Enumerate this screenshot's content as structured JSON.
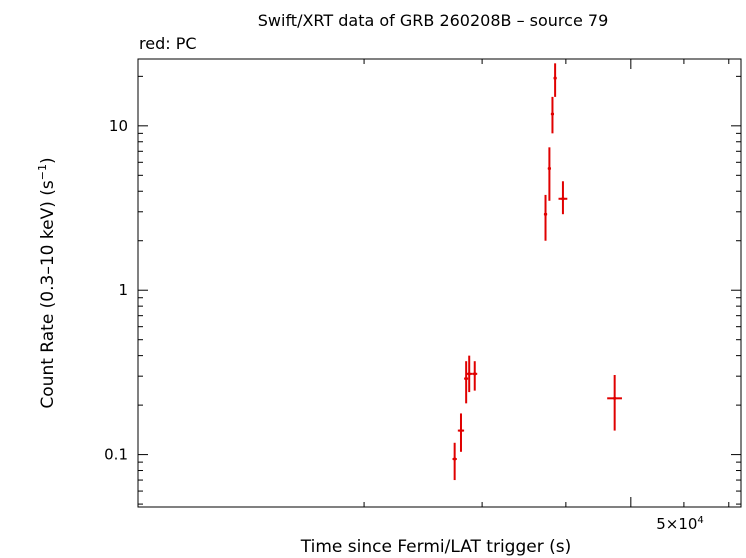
{
  "chart_data": {
    "type": "scatter",
    "title": "Swift/XRT data of GRB 260208B – source 79",
    "subtitle": "red: PC",
    "xlabel": "Time since Fermi/LAT trigger (s)",
    "ylabel_main": "Count Rate (0.3–10 keV) (s",
    "ylabel_exp": "−1",
    "ylabel_close": ")",
    "x_scale": "log",
    "y_scale": "log",
    "xlim": [
      9200,
      73000
    ],
    "ylim": [
      0.048,
      25.5
    ],
    "x_tick_label": {
      "mantissa": "5×10",
      "exponent": "4",
      "value": 50000
    },
    "x_minor_ticks": [
      20000,
      30000,
      40000,
      50000,
      60000,
      70000
    ],
    "y_ticks": [
      {
        "value": 0.1,
        "label": "0.1"
      },
      {
        "value": 1,
        "label": "1"
      },
      {
        "value": 10,
        "label": "10"
      }
    ],
    "grid": false,
    "series": [
      {
        "color": "#e00000",
        "points": [
          {
            "x": 27300,
            "xlo": 27100,
            "xhi": 27500,
            "y": 0.094,
            "ylo": 0.07,
            "yhi": 0.118
          },
          {
            "x": 27900,
            "xlo": 27600,
            "xhi": 28200,
            "y": 0.14,
            "ylo": 0.104,
            "yhi": 0.178
          },
          {
            "x": 28400,
            "xlo": 28200,
            "xhi": 28600,
            "y": 0.29,
            "ylo": 0.205,
            "yhi": 0.37
          },
          {
            "x": 28700,
            "xlo": 28400,
            "xhi": 29000,
            "y": 0.31,
            "ylo": 0.24,
            "yhi": 0.4
          },
          {
            "x": 29250,
            "xlo": 29000,
            "xhi": 29500,
            "y": 0.31,
            "ylo": 0.245,
            "yhi": 0.37
          },
          {
            "x": 37300,
            "xlo": 37100,
            "xhi": 37500,
            "y": 2.9,
            "ylo": 2.0,
            "yhi": 3.8
          },
          {
            "x": 37800,
            "xlo": 37600,
            "xhi": 38000,
            "y": 5.5,
            "ylo": 3.5,
            "yhi": 7.4
          },
          {
            "x": 38200,
            "xlo": 38000,
            "xhi": 38400,
            "y": 11.8,
            "ylo": 9.0,
            "yhi": 15.0
          },
          {
            "x": 38550,
            "xlo": 38350,
            "xhi": 38750,
            "y": 19.5,
            "ylo": 15.0,
            "yhi": 24.0
          },
          {
            "x": 39600,
            "xlo": 39000,
            "xhi": 40200,
            "y": 3.6,
            "ylo": 2.9,
            "yhi": 4.6
          },
          {
            "x": 47300,
            "xlo": 46100,
            "xhi": 48500,
            "y": 0.22,
            "ylo": 0.14,
            "yhi": 0.305
          }
        ]
      }
    ]
  }
}
